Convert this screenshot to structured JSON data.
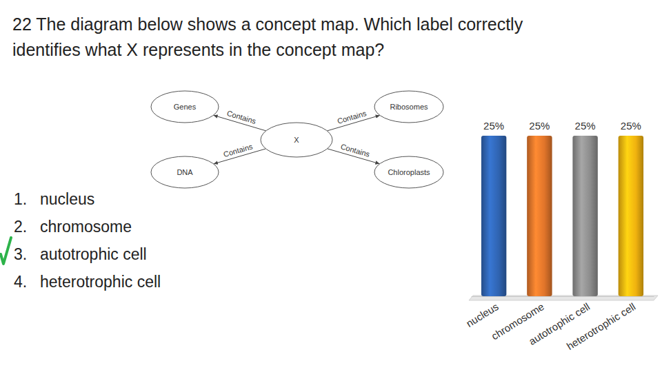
{
  "question": {
    "lines": [
      "22 The diagram below shows a concept map. Which label correctly",
      "identifies what X represents in the concept map?"
    ]
  },
  "concept_map": {
    "center": "X",
    "nodes": [
      {
        "label": "Genes",
        "edge_label": "Contains"
      },
      {
        "label": "DNA",
        "edge_label": "Contains"
      },
      {
        "label": "Ribosomes",
        "edge_label": "Contains"
      },
      {
        "label": "Chloroplasts",
        "edge_label": "Contains"
      }
    ]
  },
  "options": [
    {
      "number": "1.",
      "text": "nucleus",
      "correct": false
    },
    {
      "number": "2.",
      "text": "chromosome",
      "correct": false
    },
    {
      "number": "3.",
      "text": "autotrophic cell",
      "correct": true
    },
    {
      "number": "4.",
      "text": "heterotrophic cell",
      "correct": false
    }
  ],
  "chart_data": {
    "type": "bar",
    "categories": [
      "nucleus",
      "chromosome",
      "autotrophic cell",
      "heterotrophic cell"
    ],
    "values": [
      25,
      25,
      25,
      25
    ],
    "value_labels": [
      "25%",
      "25%",
      "25%",
      "25%"
    ],
    "colors": [
      "#2f63b0",
      "#e0742a",
      "#8c8c8c",
      "#f0b20f"
    ],
    "ylim": [
      0,
      25
    ],
    "data_labels": true,
    "tick_labels": "x"
  }
}
